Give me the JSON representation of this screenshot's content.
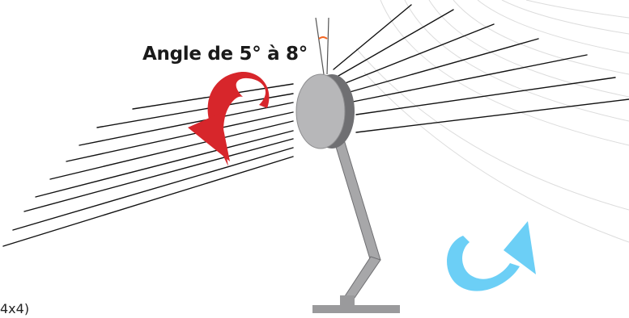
{
  "angle_label": "Angle de 5° à 8°",
  "corner_text": "4x4)",
  "colors": {
    "disc_face": "#b7b7b9",
    "disc_rim": "#6f6f72",
    "lines": "#111111",
    "background_arcs": "#d9d9d9",
    "arrow_red": "#d7262b",
    "arrow_blue": "#6ccff6",
    "angle_marker": "#f26522",
    "stand": "#9a9a9c"
  },
  "icons": [
    "rotation-arrow-red-icon",
    "rotation-arrow-blue-icon"
  ]
}
